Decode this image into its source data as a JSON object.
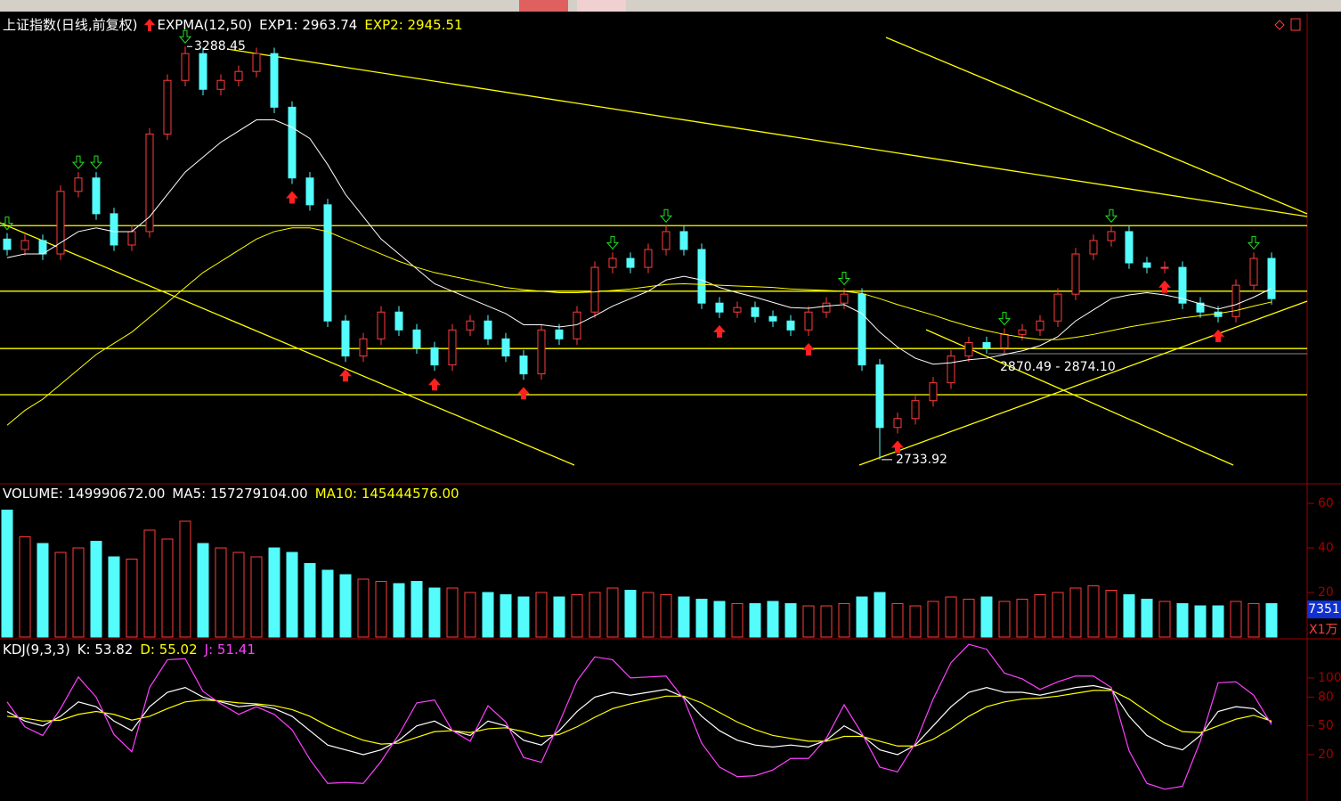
{
  "chart_data": [
    {
      "type": "candlestick",
      "title": "上证指数(日线,前复权)",
      "indicator": "EXPMA(12,50)",
      "open": [
        3030,
        3016,
        3028,
        3010,
        3094,
        3112,
        3064,
        3022,
        3040,
        3171,
        3243,
        3279,
        3231,
        3243,
        3255,
        3279,
        3207,
        3112,
        3076,
        2920,
        2873,
        2896,
        2932,
        2908,
        2884,
        2861,
        2908,
        2920,
        2896,
        2873,
        2849,
        2908,
        2896,
        2932,
        2992,
        3004,
        2992,
        3016,
        3040,
        3016,
        2944,
        2932,
        2938,
        2926,
        2920,
        2908,
        2932,
        2944,
        2956,
        2861,
        2777,
        2789,
        2813,
        2837,
        2873,
        2891,
        2884,
        2902,
        2908,
        2920,
        2956,
        3010,
        3028,
        3040,
        2998,
        2992,
        2992,
        2944,
        2932,
        2926,
        2968,
        3004
      ],
      "high": [
        3038,
        3036,
        3036,
        3102,
        3120,
        3120,
        3072,
        3048,
        3179,
        3251,
        3288.45,
        3287,
        3251,
        3263,
        3287,
        3287,
        3215,
        3120,
        3084,
        2928,
        2904,
        2940,
        2940,
        2916,
        2892,
        2916,
        2928,
        2928,
        2904,
        2881,
        2916,
        2916,
        2940,
        3000,
        3012,
        3012,
        3024,
        3048,
        3048,
        3024,
        2952,
        2946,
        2946,
        2934,
        2928,
        2940,
        2952,
        2964,
        2964,
        2869,
        2797,
        2821,
        2845,
        2881,
        2899,
        2899,
        2910,
        2916,
        2928,
        2964,
        3018,
        3036,
        3048,
        3048,
        3006,
        3000,
        3000,
        2952,
        2940,
        2976,
        3012,
        3012
      ],
      "low": [
        3008,
        3008,
        3002,
        3002,
        3086,
        3056,
        3014,
        3014,
        3032,
        3163,
        3235,
        3223,
        3223,
        3235,
        3247,
        3199,
        3104,
        3068,
        2912,
        2865,
        2865,
        2888,
        2900,
        2876,
        2853,
        2853,
        2900,
        2888,
        2865,
        2841,
        2841,
        2888,
        2888,
        2924,
        2984,
        2984,
        2984,
        3008,
        3008,
        2936,
        2924,
        2924,
        2918,
        2912,
        2900,
        2900,
        2924,
        2936,
        2853,
        2733.92,
        2769,
        2781,
        2805,
        2829,
        2865,
        2876,
        2876,
        2894,
        2900,
        2912,
        2948,
        3002,
        3020,
        2990,
        2984,
        2984,
        2936,
        2924,
        2918,
        2918,
        2960,
        2942
      ],
      "close": [
        3016,
        3028,
        3010,
        3094,
        3112,
        3064,
        3022,
        3040,
        3171,
        3243,
        3279,
        3231,
        3243,
        3255,
        3279,
        3207,
        3112,
        3076,
        2920,
        2873,
        2896,
        2932,
        2908,
        2884,
        2861,
        2908,
        2920,
        2896,
        2873,
        2849,
        2908,
        2896,
        2932,
        2992,
        3004,
        2992,
        3016,
        3040,
        3016,
        2944,
        2932,
        2938,
        2926,
        2920,
        2908,
        2932,
        2944,
        2956,
        2861,
        2777,
        2789,
        2813,
        2837,
        2873,
        2891,
        2884,
        2902,
        2908,
        2920,
        2956,
        3010,
        3028,
        3040,
        2998,
        2992,
        2992,
        2944,
        2932,
        2926,
        2968,
        3004,
        2950
      ],
      "up_color": "#ff3c3c",
      "down_color": "#54fcfc",
      "ylim": [
        2705,
        3333
      ],
      "hlines": [
        3048,
        2960,
        2883,
        2821
      ],
      "hline_color": "#ffff00",
      "series": [
        {
          "name": "EXP1",
          "color": "#ffffff",
          "values": [
            3005,
            3010,
            3010,
            3025,
            3040,
            3045,
            3040,
            3040,
            3060,
            3090,
            3120,
            3140,
            3160,
            3175,
            3190,
            3190,
            3180,
            3165,
            3130,
            3090,
            3060,
            3030,
            3010,
            2990,
            2970,
            2960,
            2950,
            2940,
            2930,
            2915,
            2915,
            2912,
            2915,
            2927,
            2940,
            2950,
            2960,
            2975,
            2980,
            2975,
            2965,
            2958,
            2952,
            2945,
            2938,
            2937,
            2940,
            2942,
            2930,
            2905,
            2885,
            2870,
            2862,
            2864,
            2868,
            2870,
            2875,
            2880,
            2887,
            2899,
            2920,
            2935,
            2950,
            2955,
            2958,
            2955,
            2950,
            2943,
            2936,
            2942,
            2952,
            2963.74
          ]
        },
        {
          "name": "EXP2",
          "color": "#ffff00",
          "values": [
            2780,
            2800,
            2815,
            2835,
            2855,
            2875,
            2890,
            2905,
            2925,
            2945,
            2965,
            2985,
            3000,
            3015,
            3030,
            3040,
            3045,
            3045,
            3040,
            3030,
            3020,
            3010,
            3000,
            2992,
            2985,
            2980,
            2975,
            2970,
            2965,
            2962,
            2960,
            2958,
            2958,
            2959,
            2961,
            2963,
            2966,
            2969,
            2970,
            2969,
            2968,
            2967,
            2966,
            2965,
            2963,
            2962,
            2961,
            2960,
            2957,
            2950,
            2942,
            2935,
            2928,
            2920,
            2913,
            2907,
            2902,
            2898,
            2895,
            2895,
            2898,
            2902,
            2907,
            2912,
            2916,
            2920,
            2924,
            2927,
            2930,
            2934,
            2940,
            2945.51
          ]
        }
      ],
      "annotations": [
        "2870.49 - 2874.10"
      ]
    },
    {
      "type": "bar",
      "title": "VOLUME",
      "header": [
        {
          "name": "VOLUME",
          "label": "149990672.00",
          "color": "#ffffff"
        },
        {
          "name": "MA5",
          "label": "157279104.00",
          "color": "#ffffff"
        },
        {
          "name": "MA10",
          "label": "145444576.00",
          "color": "#ffff00"
        }
      ],
      "values": [
        57,
        45,
        42,
        38,
        40,
        43,
        36,
        35,
        48,
        44,
        52,
        42,
        40,
        38,
        36,
        40,
        38,
        33,
        30,
        28,
        26,
        25,
        24,
        25,
        22,
        22,
        20,
        20,
        19,
        18,
        20,
        18,
        19,
        20,
        22,
        21,
        20,
        19,
        18,
        17,
        16,
        15,
        15,
        16,
        15,
        14,
        14,
        15,
        18,
        20,
        15,
        14,
        16,
        18,
        17,
        18,
        16,
        17,
        19,
        20,
        22,
        23,
        21,
        19,
        17,
        16,
        15,
        14,
        14,
        16,
        15,
        15
      ],
      "ylim": [
        0,
        68
      ],
      "yticks": [
        20,
        40,
        60
      ],
      "badge": "7351",
      "unit": "X1万"
    },
    {
      "type": "line",
      "title": "KDJ(9,3,3)",
      "series": [
        {
          "name": "K",
          "color": "#ffffff",
          "values": [
            65,
            55,
            50,
            60,
            75,
            70,
            55,
            45,
            70,
            85,
            90,
            80,
            75,
            70,
            72,
            68,
            60,
            45,
            30,
            25,
            20,
            25,
            35,
            50,
            55,
            45,
            40,
            55,
            50,
            35,
            30,
            45,
            65,
            80,
            85,
            82,
            85,
            88,
            80,
            60,
            45,
            35,
            30,
            28,
            30,
            28,
            35,
            50,
            40,
            25,
            20,
            30,
            50,
            70,
            85,
            90,
            85,
            85,
            82,
            86,
            90,
            92,
            88,
            60,
            40,
            30,
            25,
            40,
            65,
            70,
            68,
            53.82
          ]
        },
        {
          "name": "D",
          "color": "#ffff00",
          "values": [
            60,
            58,
            55,
            56,
            62,
            65,
            62,
            56,
            60,
            68,
            75,
            77,
            76,
            74,
            73,
            71,
            67,
            60,
            50,
            42,
            35,
            31,
            32,
            38,
            44,
            45,
            43,
            47,
            48,
            44,
            39,
            41,
            49,
            59,
            68,
            73,
            77,
            81,
            81,
            74,
            64,
            54,
            46,
            40,
            37,
            34,
            34,
            39,
            39,
            34,
            29,
            29,
            36,
            47,
            60,
            70,
            75,
            78,
            79,
            81,
            84,
            87,
            87,
            78,
            65,
            53,
            44,
            43,
            50,
            57,
            61,
            55.02
          ]
        },
        {
          "name": "J",
          "color": "#ff40ff",
          "values": [
            75,
            49,
            40,
            68,
            101,
            80,
            41,
            23,
            90,
            119,
            120,
            86,
            73,
            62,
            70,
            62,
            46,
            15,
            -10,
            -9,
            -10,
            13,
            41,
            74,
            77,
            45,
            34,
            71,
            54,
            17,
            12,
            53,
            97,
            122,
            119,
            100,
            101,
            102,
            78,
            32,
            7,
            -3,
            -2,
            4,
            16,
            16,
            37,
            72,
            42,
            7,
            2,
            32,
            78,
            116,
            135,
            130,
            105,
            99,
            88,
            96,
            102,
            102,
            90,
            24,
            -10,
            -16,
            -13,
            34,
            95,
            96,
            82,
            51.41
          ]
        }
      ],
      "ylim": [
        -20,
        138
      ],
      "yticks": [
        20,
        50,
        80,
        100
      ]
    }
  ]
}
